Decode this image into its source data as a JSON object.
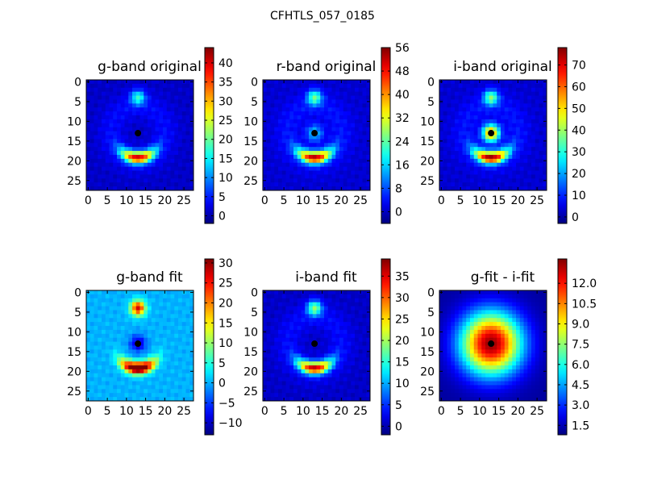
{
  "figure": {
    "title": "CFHTLS_057_0185"
  },
  "panels": [
    {
      "id": "g-orig",
      "title": "g-band original",
      "kind": "ring",
      "background": 0.07,
      "ring_peak": 0.8,
      "blob_peak": 0.32,
      "center_peak": 0.0,
      "xticks": [
        0,
        5,
        10,
        15,
        20,
        25
      ],
      "yticks": [
        0,
        5,
        10,
        15,
        20,
        25
      ],
      "extent": [
        -0.5,
        27.5
      ],
      "colorbar": {
        "min": -2,
        "max": 44,
        "ticks": [
          "0",
          "5",
          "10",
          "15",
          "20",
          "25",
          "30",
          "35",
          "40"
        ]
      }
    },
    {
      "id": "r-orig",
      "title": "r-band original",
      "kind": "ring",
      "background": 0.08,
      "ring_peak": 0.82,
      "blob_peak": 0.38,
      "center_peak": 0.25,
      "xticks": [
        0,
        5,
        10,
        15,
        20,
        25
      ],
      "yticks": [
        0,
        5,
        10,
        15,
        20,
        25
      ],
      "extent": [
        -0.5,
        27.5
      ],
      "colorbar": {
        "min": -4,
        "max": 56,
        "ticks": [
          "0",
          "8",
          "16",
          "24",
          "32",
          "40",
          "48",
          "56"
        ]
      }
    },
    {
      "id": "i-orig",
      "title": "i-band original",
      "kind": "ring",
      "background": 0.08,
      "ring_peak": 0.85,
      "blob_peak": 0.4,
      "center_peak": 0.7,
      "xticks": [
        0,
        5,
        10,
        15,
        20,
        25
      ],
      "yticks": [
        0,
        5,
        10,
        15,
        20,
        25
      ],
      "extent": [
        -0.5,
        27.5
      ],
      "colorbar": {
        "min": -3,
        "max": 78,
        "ticks": [
          "0",
          "10",
          "20",
          "30",
          "40",
          "50",
          "60",
          "70"
        ]
      }
    },
    {
      "id": "g-fit",
      "title": "g-band fit",
      "kind": "ring",
      "background": 0.3,
      "ring_peak": 0.88,
      "blob_peak": 0.62,
      "center_peak": -0.22,
      "xticks": [
        0,
        5,
        10,
        15,
        20,
        25
      ],
      "yticks": [
        0,
        5,
        10,
        15,
        20,
        25
      ],
      "extent": [
        -0.5,
        27.5
      ],
      "colorbar": {
        "min": -13,
        "max": 31,
        "ticks": [
          "−10",
          "−5",
          "0",
          "5",
          "10",
          "15",
          "20",
          "25",
          "30"
        ]
      }
    },
    {
      "id": "i-fit",
      "title": "i-band fit",
      "kind": "ring",
      "background": 0.07,
      "ring_peak": 0.82,
      "blob_peak": 0.42,
      "center_peak": 0.0,
      "xticks": [
        0,
        5,
        10,
        15,
        20,
        25
      ],
      "yticks": [
        0,
        5,
        10,
        15,
        20,
        25
      ],
      "extent": [
        -0.5,
        27.5
      ],
      "colorbar": {
        "min": -2,
        "max": 39,
        "ticks": [
          "0",
          "5",
          "10",
          "15",
          "20",
          "25",
          "30",
          "35"
        ]
      }
    },
    {
      "id": "diff",
      "title": "g-fit - i-fit",
      "kind": "radial",
      "background": 0.0,
      "ring_peak": 0.0,
      "blob_peak": 0.0,
      "center_peak": 1.0,
      "xticks": [
        0,
        5,
        10,
        15,
        20,
        25
      ],
      "yticks": [
        0,
        5,
        10,
        15,
        20,
        25
      ],
      "extent": [
        -0.5,
        27.5
      ],
      "colorbar": {
        "min": 0.8,
        "max": 13.8,
        "ticks": [
          "1.5",
          "3.0",
          "4.5",
          "6.0",
          "7.5",
          "9.0",
          "10.5",
          "12.0"
        ]
      }
    }
  ],
  "chart_data": {
    "type": "heatmap",
    "title": "CFHTLS_057_0185",
    "colormap": "jet",
    "grid_size": [
      28,
      28
    ],
    "marker": {
      "x": 13,
      "y": 13,
      "color": "#000000"
    },
    "panels": [
      {
        "title": "g-band original",
        "xlim": [
          -0.5,
          27.5
        ],
        "ylim": [
          27.5,
          -0.5
        ],
        "value_range": [
          -2,
          44
        ]
      },
      {
        "title": "r-band original",
        "xlim": [
          -0.5,
          27.5
        ],
        "ylim": [
          27.5,
          -0.5
        ],
        "value_range": [
          -4,
          56
        ]
      },
      {
        "title": "i-band original",
        "xlim": [
          -0.5,
          27.5
        ],
        "ylim": [
          27.5,
          -0.5
        ],
        "value_range": [
          -3,
          78
        ]
      },
      {
        "title": "g-band fit",
        "xlim": [
          -0.5,
          27.5
        ],
        "ylim": [
          27.5,
          -0.5
        ],
        "value_range": [
          -13,
          31
        ]
      },
      {
        "title": "i-band fit",
        "xlim": [
          -0.5,
          27.5
        ],
        "ylim": [
          27.5,
          -0.5
        ],
        "value_range": [
          -2,
          39
        ]
      },
      {
        "title": "g-fit - i-fit",
        "xlim": [
          -0.5,
          27.5
        ],
        "ylim": [
          27.5,
          -0.5
        ],
        "value_range": [
          0.8,
          13.8
        ]
      }
    ]
  }
}
